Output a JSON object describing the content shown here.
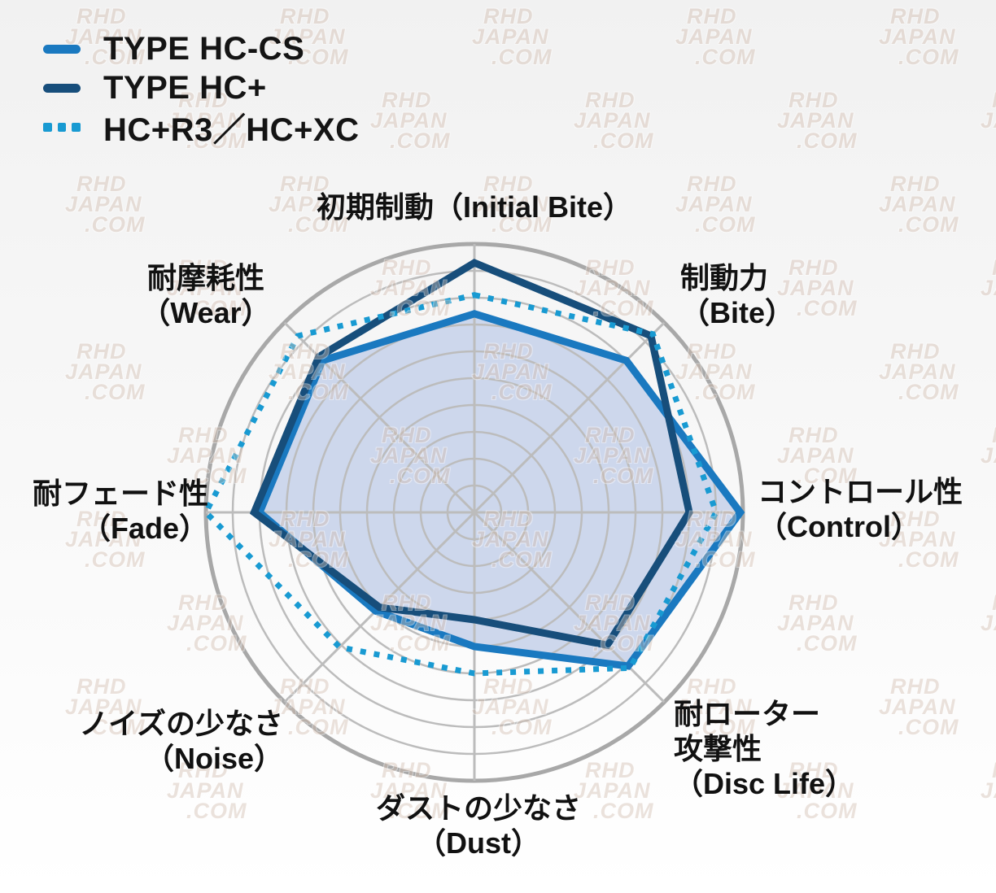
{
  "legend": {
    "items": [
      {
        "label": "TYPE HC-CS",
        "line_style": "solid",
        "color": "#1a79c0"
      },
      {
        "label": "TYPE HC+",
        "line_style": "solid",
        "color": "#174e7b"
      },
      {
        "label": "HC+R3／HC+XC",
        "line_style": "dotted",
        "color": "#189ad2"
      }
    ]
  },
  "watermark": {
    "lines": [
      "RHD",
      "JAPAN",
      ".COM"
    ]
  },
  "chart_data": {
    "type": "radar",
    "scale": {
      "min": 0,
      "max": 10,
      "rings": 10,
      "ring_step": 1
    },
    "grid": {
      "shape": "circular",
      "spokes": 8,
      "grid_color": "#bcbcbc",
      "outer_ring_color": "#a8a8a8"
    },
    "axes": [
      {
        "id": "initial-bite",
        "lines": [
          "初期制動（Initial Bite）"
        ]
      },
      {
        "id": "bite",
        "lines": [
          "制動力",
          "（Bite）"
        ]
      },
      {
        "id": "control",
        "lines": [
          "コントロール性",
          "（Control）"
        ]
      },
      {
        "id": "disc-life",
        "lines": [
          "耐ローター",
          "攻撃性",
          "（Disc Life）"
        ]
      },
      {
        "id": "dust",
        "lines": [
          "ダストの少なさ",
          "（Dust）"
        ]
      },
      {
        "id": "noise",
        "lines": [
          "ノイズの少なさ",
          "（Noise）"
        ]
      },
      {
        "id": "fade",
        "lines": [
          "耐フェード性",
          "（Fade）"
        ]
      },
      {
        "id": "wear",
        "lines": [
          "耐摩耗性",
          "（Wear）"
        ]
      }
    ],
    "axis_order_note": "values listed clockwise from top: initial-bite, bite, control, disc-life, dust, noise, fade, wear",
    "series": [
      {
        "name": "TYPE HC-CS",
        "color": "#1a79c0",
        "line": "solid",
        "width": 9,
        "fill": true,
        "fill_color": "#cdd7ec",
        "values": [
          7.4,
          8.0,
          9.9,
          8.1,
          5.0,
          5.2,
          8.0,
          8.0
        ]
      },
      {
        "name": "TYPE HC+",
        "color": "#174e7b",
        "line": "solid",
        "width": 9,
        "fill": false,
        "values": [
          9.3,
          9.3,
          8.0,
          7.0,
          4.0,
          5.0,
          8.2,
          8.2
        ]
      },
      {
        "name": "HC+R3／HC+XC",
        "color": "#189ad2",
        "line": "dotted",
        "width": 7,
        "fill": false,
        "values": [
          8.1,
          9.4,
          9.0,
          8.2,
          6.0,
          7.1,
          10.0,
          9.3
        ]
      }
    ],
    "legend_position": "top-left"
  }
}
